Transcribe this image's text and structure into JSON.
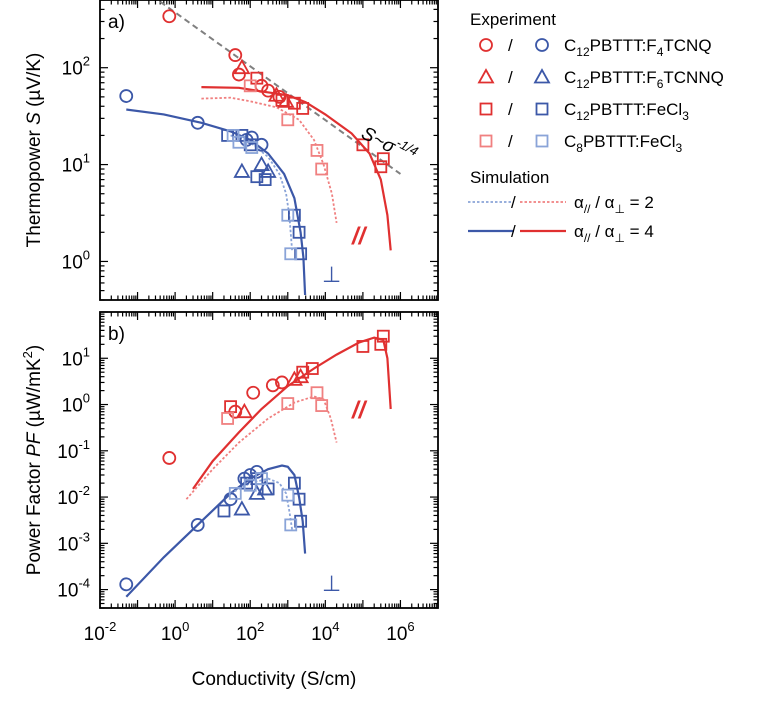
{
  "colors": {
    "red": "#e03030",
    "light_red": "#f08080",
    "blue": "#3c58a8",
    "light_blue": "#8aa4d8",
    "dashed": "#808080"
  },
  "chart_data": [
    {
      "type": "scatter",
      "panel_label": "a)",
      "ylabel_parts": [
        "Thermopower ",
        "S",
        " (µV/K)"
      ],
      "xscale": "log",
      "yscale": "log",
      "xlim": [
        0.01,
        10000000
      ],
      "ylim": [
        0.4,
        500
      ],
      "yticks": [
        {
          "value": 1,
          "base": "10",
          "exp": "0"
        },
        {
          "value": 10,
          "base": "10",
          "exp": "1"
        },
        {
          "value": 100,
          "base": "10",
          "exp": "2"
        }
      ],
      "annotations": {
        "parallel": "//",
        "perpendicular": "⊥",
        "law_main": "S~σ",
        "law_exp": "-1/4"
      },
      "guide_line": {
        "x": [
          0.4,
          1000000
        ],
        "y": [
          480,
          8
        ]
      },
      "series": [
        {
          "name": "C12PBTTT:F4TCNQ parallel",
          "marker": "circle",
          "color_key": "red",
          "points": [
            [
              0.7,
              340
            ],
            [
              40,
              135
            ],
            [
              50,
              85
            ],
            [
              200,
              65
            ],
            [
              300,
              58
            ],
            [
              600,
              50
            ]
          ]
        },
        {
          "name": "C12PBTTT:F6TCNNQ parallel",
          "marker": "triangle",
          "color_key": "red",
          "points": [
            [
              60,
              100
            ],
            [
              500,
              52
            ],
            [
              900,
              45
            ]
          ]
        },
        {
          "name": "C12PBTTT:FeCl3 parallel",
          "marker": "square",
          "color_key": "red",
          "points": [
            [
              150,
              78
            ],
            [
              700,
              46
            ],
            [
              1500,
              43
            ],
            [
              2500,
              38
            ],
            [
              100000,
              16
            ],
            [
              350000,
              11.5
            ],
            [
              300000,
              9.5
            ]
          ]
        },
        {
          "name": "C8PBTTT:FeCl3 parallel",
          "marker": "square",
          "color_key": "light_red",
          "points": [
            [
              100,
              65
            ],
            [
              1000,
              29
            ],
            [
              6000,
              14
            ],
            [
              8000,
              9
            ]
          ]
        },
        {
          "name": "C12PBTTT:F4TCNQ perpendicular",
          "marker": "circle",
          "color_key": "blue",
          "points": [
            [
              0.05,
              51
            ],
            [
              4,
              27
            ],
            [
              80,
              18
            ],
            [
              110,
              19
            ],
            [
              200,
              16
            ]
          ]
        },
        {
          "name": "C12PBTTT:F6TCNNQ perpendicular",
          "marker": "triangle",
          "color_key": "blue",
          "points": [
            [
              60,
              8.5
            ],
            [
              200,
              10
            ],
            [
              300,
              8.5
            ]
          ]
        },
        {
          "name": "C12PBTTT:FeCl3 perpendicular",
          "marker": "square",
          "color_key": "blue",
          "points": [
            [
              25,
              20
            ],
            [
              60,
              20
            ],
            [
              100,
              16
            ],
            [
              150,
              7.5
            ],
            [
              250,
              7
            ],
            [
              1500,
              3
            ],
            [
              2000,
              2
            ],
            [
              2200,
              1.2
            ]
          ]
        },
        {
          "name": "C8PBTTT:FeCl3 perpendicular",
          "marker": "square",
          "color_key": "light_blue",
          "points": [
            [
              35,
              20
            ],
            [
              50,
              17
            ],
            [
              110,
              15
            ],
            [
              1000,
              3
            ],
            [
              1200,
              1.2
            ]
          ]
        }
      ],
      "curves": [
        {
          "name": "parallel ratio 4",
          "style": "solid",
          "color_key": "red",
          "points": [
            [
              5,
              63
            ],
            [
              50,
              62
            ],
            [
              200,
              57
            ],
            [
              1000,
              52
            ],
            [
              3000,
              44
            ],
            [
              10000,
              33
            ],
            [
              50000,
              21
            ],
            [
              150000,
              13
            ],
            [
              300000,
              7
            ],
            [
              450000,
              3
            ],
            [
              550000,
              1.3
            ]
          ]
        },
        {
          "name": "parallel ratio 2",
          "style": "dotted",
          "color_key": "light_red",
          "points": [
            [
              5,
              48
            ],
            [
              30,
              49
            ],
            [
              100,
              45
            ],
            [
              500,
              39
            ],
            [
              2000,
              29
            ],
            [
              5000,
              18
            ],
            [
              9000,
              10
            ],
            [
              15000,
              5
            ],
            [
              20000,
              2.5
            ]
          ]
        },
        {
          "name": "perpendicular ratio 4",
          "style": "solid",
          "color_key": "blue",
          "points": [
            [
              0.05,
              37
            ],
            [
              0.5,
              33
            ],
            [
              5,
              27
            ],
            [
              30,
              22
            ],
            [
              100,
              18
            ],
            [
              300,
              13
            ],
            [
              800,
              8
            ],
            [
              1500,
              4.5
            ],
            [
              2200,
              2
            ],
            [
              2600,
              1.1
            ],
            [
              2900,
              0.45
            ]
          ]
        },
        {
          "name": "perpendicular ratio 2",
          "style": "dotted",
          "color_key": "light_blue",
          "points": [
            [
              30,
              20
            ],
            [
              100,
              17
            ],
            [
              300,
              12
            ],
            [
              600,
              8
            ],
            [
              900,
              5
            ],
            [
              1100,
              3
            ],
            [
              1300,
              1.3
            ]
          ]
        }
      ]
    },
    {
      "type": "scatter",
      "panel_label": "b)",
      "ylabel_parts": [
        "Power Factor ",
        "PF",
        " (µW/mK",
        "2",
        ")"
      ],
      "xlabel": "Conductivity (S/cm)",
      "xscale": "log",
      "yscale": "log",
      "xlim": [
        0.01,
        10000000
      ],
      "ylim": [
        4e-05,
        100
      ],
      "xticks": [
        {
          "value": 0.01,
          "base": "10",
          "exp": "-2"
        },
        {
          "value": 1,
          "base": "10",
          "exp": "0"
        },
        {
          "value": 100,
          "base": "10",
          "exp": "2"
        },
        {
          "value": 10000,
          "base": "10",
          "exp": "4"
        },
        {
          "value": 1000000,
          "base": "10",
          "exp": "6"
        }
      ],
      "yticks": [
        {
          "value": 0.0001,
          "base": "10",
          "exp": "-4"
        },
        {
          "value": 0.001,
          "base": "10",
          "exp": "-3"
        },
        {
          "value": 0.01,
          "base": "10",
          "exp": "-2"
        },
        {
          "value": 0.1,
          "base": "10",
          "exp": "-1"
        },
        {
          "value": 1,
          "base": "10",
          "exp": "0"
        },
        {
          "value": 10,
          "base": "10",
          "exp": "1"
        }
      ],
      "annotations": {
        "parallel": "//",
        "perpendicular": "⊥"
      },
      "series": [
        {
          "name": "C12PBTTT:F4TCNQ parallel",
          "marker": "circle",
          "color_key": "red",
          "points": [
            [
              0.7,
              0.07
            ],
            [
              40,
              0.7
            ],
            [
              120,
              1.8
            ],
            [
              400,
              2.6
            ],
            [
              700,
              3
            ]
          ]
        },
        {
          "name": "C12PBTTT:F6TCNNQ parallel",
          "marker": "triangle",
          "color_key": "red",
          "points": [
            [
              70,
              0.7
            ],
            [
              1500,
              3.5
            ],
            [
              2200,
              4
            ]
          ]
        },
        {
          "name": "C12PBTTT:FeCl3 parallel",
          "marker": "square",
          "color_key": "red",
          "points": [
            [
              30,
              0.9
            ],
            [
              2500,
              5
            ],
            [
              4500,
              6
            ],
            [
              100000,
              18
            ],
            [
              350000,
              30
            ],
            [
              300000,
              20
            ]
          ]
        },
        {
          "name": "C8PBTTT:FeCl3 parallel",
          "marker": "square",
          "color_key": "light_red",
          "points": [
            [
              25,
              0.5
            ],
            [
              1000,
              1.05
            ],
            [
              6000,
              1.8
            ],
            [
              8000,
              0.95
            ]
          ]
        },
        {
          "name": "C12PBTTT:F4TCNQ perpendicular",
          "marker": "circle",
          "color_key": "blue",
          "points": [
            [
              0.05,
              0.00013
            ],
            [
              4,
              0.0025
            ],
            [
              30,
              0.009
            ],
            [
              70,
              0.025
            ],
            [
              100,
              0.03
            ],
            [
              150,
              0.035
            ]
          ]
        },
        {
          "name": "C12PBTTT:F6TCNNQ perpendicular",
          "marker": "triangle",
          "color_key": "blue",
          "points": [
            [
              60,
              0.0055
            ],
            [
              150,
              0.012
            ],
            [
              250,
              0.015
            ]
          ]
        },
        {
          "name": "C12PBTTT:FeCl3 perpendicular",
          "marker": "square",
          "color_key": "blue",
          "points": [
            [
              20,
              0.005
            ],
            [
              80,
              0.02
            ],
            [
              150,
              0.025
            ],
            [
              300,
              0.015
            ],
            [
              1500,
              0.02
            ],
            [
              2000,
              0.009
            ],
            [
              2200,
              0.003
            ]
          ]
        },
        {
          "name": "C8PBTTT:FeCl3 perpendicular",
          "marker": "square",
          "color_key": "light_blue",
          "points": [
            [
              40,
              0.012
            ],
            [
              100,
              0.018
            ],
            [
              200,
              0.025
            ],
            [
              1000,
              0.011
            ],
            [
              1200,
              0.0025
            ]
          ]
        }
      ],
      "curves": [
        {
          "name": "parallel ratio 4",
          "style": "solid",
          "color_key": "red",
          "points": [
            [
              3,
              0.015
            ],
            [
              10,
              0.06
            ],
            [
              50,
              0.25
            ],
            [
              200,
              0.8
            ],
            [
              1000,
              2.5
            ],
            [
              5000,
              6
            ],
            [
              20000,
              12
            ],
            [
              80000,
              22
            ],
            [
              200000,
              28
            ],
            [
              350000,
              25
            ],
            [
              450000,
              10
            ],
            [
              550000,
              0.8
            ]
          ]
        },
        {
          "name": "parallel ratio 2",
          "style": "dotted",
          "color_key": "light_red",
          "points": [
            [
              2,
              0.009
            ],
            [
              10,
              0.04
            ],
            [
              50,
              0.15
            ],
            [
              300,
              0.5
            ],
            [
              1500,
              1.1
            ],
            [
              5000,
              1.5
            ],
            [
              9000,
              1.3
            ],
            [
              14000,
              0.5
            ],
            [
              20000,
              0.15
            ]
          ]
        },
        {
          "name": "perpendicular ratio 4",
          "style": "solid",
          "color_key": "blue",
          "points": [
            [
              0.05,
              7e-05
            ],
            [
              0.5,
              0.0005
            ],
            [
              5,
              0.003
            ],
            [
              30,
              0.012
            ],
            [
              100,
              0.025
            ],
            [
              300,
              0.04
            ],
            [
              700,
              0.048
            ],
            [
              1000,
              0.045
            ],
            [
              1500,
              0.03
            ],
            [
              2000,
              0.01
            ],
            [
              2500,
              0.003
            ],
            [
              2900,
              0.0006
            ]
          ]
        },
        {
          "name": "perpendicular ratio 2",
          "style": "dotted",
          "color_key": "light_blue",
          "points": [
            [
              30,
              0.012
            ],
            [
              100,
              0.02
            ],
            [
              300,
              0.025
            ],
            [
              600,
              0.02
            ],
            [
              900,
              0.012
            ],
            [
              1100,
              0.005
            ],
            [
              1300,
              0.002
            ]
          ]
        }
      ]
    }
  ],
  "legend": {
    "experiment_title": "Experiment",
    "slash": "/",
    "entries": [
      {
        "marker": "circle",
        "left_color_key": "red",
        "right_color_key": "blue",
        "label_parts": [
          "C",
          "12",
          "PBTTT:F",
          "4",
          "TCNQ"
        ]
      },
      {
        "marker": "triangle",
        "left_color_key": "red",
        "right_color_key": "blue",
        "label_parts": [
          "C",
          "12",
          "PBTTT:F",
          "6",
          "TCNNQ"
        ]
      },
      {
        "marker": "square",
        "left_color_key": "red",
        "right_color_key": "blue",
        "label_parts": [
          "C",
          "12",
          "PBTTT:FeCl",
          "3",
          ""
        ]
      },
      {
        "marker": "square",
        "left_color_key": "light_red",
        "right_color_key": "light_blue",
        "label_parts": [
          "C",
          "8",
          "PBTTT:FeCl",
          "3",
          ""
        ]
      }
    ],
    "simulation_title": "Simulation",
    "sim_entries": [
      {
        "style": "dotted",
        "left_color_key": "light_blue",
        "right_color_key": "light_red",
        "label_parts": [
          "α",
          "//",
          " / α",
          "⊥",
          " = 2"
        ]
      },
      {
        "style": "solid",
        "left_color_key": "blue",
        "right_color_key": "red",
        "label_parts": [
          "α",
          "//",
          " / α",
          "⊥",
          " = 4"
        ]
      }
    ]
  }
}
